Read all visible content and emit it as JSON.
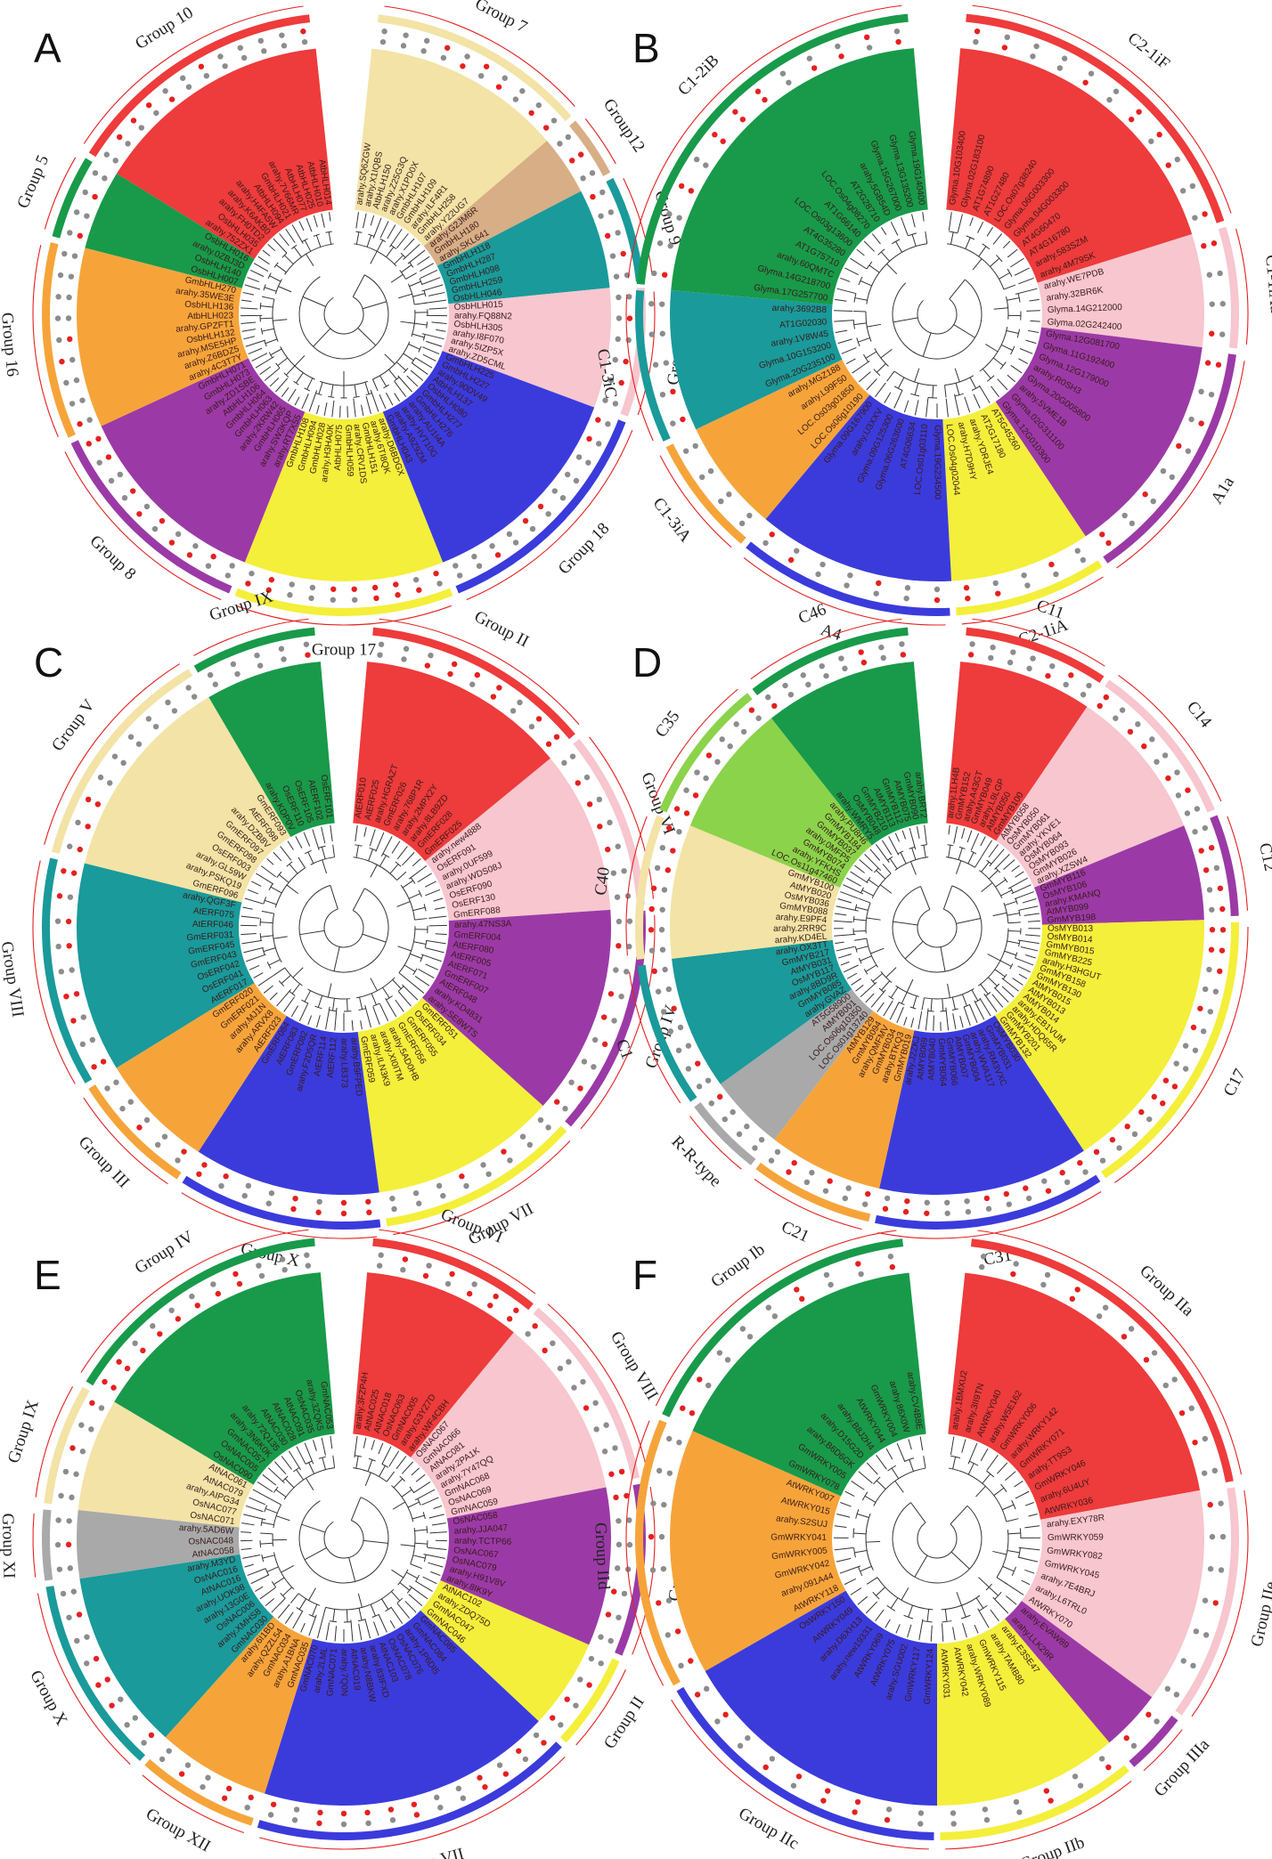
{
  "colors": {
    "red": "#ee3b3b",
    "pink": "#f7c6cf",
    "purple": "#9b3aa6",
    "yellow": "#f4ef3a",
    "blue": "#3b3bdc",
    "orange": "#f6a43a",
    "green": "#189a4a",
    "teal": "#1a9a9a",
    "beige": "#f3e3a6",
    "tan": "#d7ae86",
    "gray": "#a9a9a9",
    "lime": "#8bd34a",
    "dot_gray": "#8c8c8c",
    "dot_red": "#e52020"
  },
  "panels": [
    {
      "id": "A",
      "letter": "A",
      "gap": 12,
      "groups": [
        {
          "label": "Group 7",
          "color": "beige",
          "leaves": [
            "arahy.SQ6ZGW",
            "arahy.X1IQBS",
            "AtbHLH150",
            "arahy.Z25G3Q",
            "arahy.X1PD0X",
            "GmbHLH107",
            "GmbHLH109",
            "arahy.ILF4R1",
            "GmbHLH258",
            "arahy.Y22UG7"
          ]
        },
        {
          "label": "Group12",
          "color": "tan",
          "leaves": [
            "arahy.G2JM6R",
            "GmbHLH180",
            "arahy.SKL641"
          ]
        },
        {
          "label": "Group 9",
          "color": "teal",
          "leaves": [
            "GmbHLH118",
            "GmbHLH287",
            "GmbHLH098",
            "GmbHLH259",
            "OsbHLH046"
          ]
        },
        {
          "label": "Group 6",
          "color": "pink",
          "leaves": [
            "OsbHLH015",
            "arahy.FQ88N2",
            "OsbHLH305",
            "arahy.I8F070",
            "arahy.5IZP5X",
            "arahy.ZD5CML"
          ]
        },
        {
          "label": "Group 18",
          "color": "blue",
          "leaves": [
            "GmbHLH225",
            "GmbHLH227",
            "arahy.90DV49",
            "AtbHLH137",
            "OsbHLH080",
            "GmbHLH277",
            "GmbHLH276",
            "arahy.AU1I4A",
            "arahy.HVT10G",
            "arahy.A9Z9ZM",
            "GmbHLH043"
          ]
        },
        {
          "label": "Group 17",
          "color": "yellow",
          "leaves": [
            "arahy.D6BDGX",
            "arahy.6TI8QK",
            "GmbHLH151",
            "arahy.CRV1DS",
            "GmbHLH059",
            "AtbHLH075",
            "arahy.H3HA0K",
            "GmbHLH028",
            "GmbHLH094",
            "GmbHLH108"
          ]
        },
        {
          "label": "Group 8",
          "color": "purple",
          "leaves": [
            "arahy.RT7X55",
            "arahy.SW3KQP",
            "GmbHLH065",
            "arahy.2KRW42",
            "GmbHLH063",
            "GmbHLH064",
            "AtbHLH106",
            "arahy.ZD1SBE",
            "GmbHLH073",
            "GmbHLH071"
          ]
        },
        {
          "label": "Group 16",
          "color": "orange",
          "leaves": [
            "arahy.4C3T7Y",
            "arahy.Z6BDZ5",
            "arahy.MSE5HP",
            "OsbHLH132",
            "arahy.GPZFT1",
            "AtbHLH023",
            "OsbHLH136",
            "arahy.35WE3E",
            "GmbHLH270"
          ]
        },
        {
          "label": "Group 5",
          "color": "green",
          "leaves": [
            "OsbHLH007",
            "OsbHLH140",
            "arahy.0ZBJ3D",
            "OsbHLH016"
          ]
        },
        {
          "label": "Group 10",
          "color": "red",
          "leaves": [
            "arahy.752ZX1",
            "OsbHLH035",
            "arahy.FH0TD2",
            "arahy.K6AKB0",
            "arahy.H4FA5W",
            "AtbHLH094",
            "GmbHLH021",
            "arahy.7V66MR",
            "AtbHLH077",
            "AtbHLH025",
            "AtbHLH010",
            "AtbHLH014"
          ]
        }
      ]
    },
    {
      "id": "B",
      "letter": "B",
      "gap": 10,
      "groups": [
        {
          "label": "C2-1iF",
          "color": "red",
          "leaves": [
            "Glyma.10G103400",
            "Glyma.02G183100",
            "AT1G74890",
            "AT1G27480",
            "LOC.Os07g38240",
            "Glyma.06G003300",
            "Glyma.04G003300",
            "AT4G60470",
            "AT4G16780",
            "arahy.583SZM",
            "arahy.4M79SK"
          ]
        },
        {
          "label": "C1-1iAa",
          "color": "pink",
          "leaves": [
            "arahy.WE7PDB",
            "arahy.32BR6K",
            "Glyma.14G212000",
            "Glyma.02G242400"
          ]
        },
        {
          "label": "A1a",
          "color": "purple",
          "leaves": [
            "Glyma.12G081700",
            "Glyma.11G192400",
            "Glyma.12G179000",
            "arahy.R0SH3",
            "Glyma.20G005800",
            "arahy.5VME1B",
            "Glyma.02G311100",
            "Glyma.12G010300"
          ]
        },
        {
          "label": "C2-1iA",
          "color": "yellow",
          "leaves": [
            "AT5G45260",
            "AT2G17180",
            "arahy.YDRJE4",
            "arahy.H7D9HY",
            "LOC.Os04g02044"
          ]
        },
        {
          "label": "A4",
          "color": "blue",
          "leaves": [
            "Glyma.19G234500",
            "LOC.Os01g03110",
            "AT4G06634",
            "Glyma.06G263600",
            "Glyma.09G125300",
            "arahy.U3XXV",
            "Glyma.09G167900"
          ]
        },
        {
          "label": "C1-3iA",
          "color": "orange",
          "leaves": [
            "LOC.Os06g10190",
            "LOC.Os03g01850",
            "arahy.L99F50",
            "arahy.MGZ188"
          ]
        },
        {
          "label": "C1-3iC",
          "color": "teal",
          "leaves": [
            "Glyma.20G235100",
            "Glyma.10G153200",
            "arahy.1V8W45",
            "AT1G02030",
            "arahy.3692B8"
          ]
        },
        {
          "label": "C1-2iB",
          "color": "green",
          "leaves": [
            "Glyma.17G257700",
            "Glyma.14G218700",
            "arahy.60QMTC",
            "AT1G75710",
            "AT4G35280",
            "LOC.Os03g13600",
            "AT1G66140",
            "LOC.Os04g08270",
            "AT2G28710",
            "arahy.5GB54D",
            "Glyma.15G267000",
            "Glyma.13G135200",
            "Glyma.19G140400"
          ]
        }
      ]
    },
    {
      "id": "C",
      "letter": "C",
      "gap": 10,
      "groups": [
        {
          "label": "Group II",
          "color": "red",
          "leaves": [
            "AtERF010",
            "AtERF025",
            "arahy.HGRAZT",
            "GmERF026",
            "arahy.768P1R",
            "arahy.2MPX2Y",
            "arahy.8LB9ZD",
            "GmERF028",
            "GmERF025"
          ]
        },
        {
          "label": "Group VI",
          "color": "pink",
          "leaves": [
            "arahy.new4888",
            "OsERF091",
            "arahy.0UF599",
            "arahy.WDS08J",
            "OsERF090",
            "OsERF130",
            "GmERF088"
          ]
        },
        {
          "label": "Group IV",
          "color": "purple",
          "leaves": [
            "arahy.47NS3A",
            "GmERF004",
            "AtERF080",
            "AtERF005",
            "AtERF071",
            "GmERF007",
            "AtERF048",
            "arahy.KD4831",
            "arahy.SE8WTS"
          ]
        },
        {
          "label": "Group VII",
          "color": "yellow",
          "leaves": [
            "GmERF051",
            "OsERF034",
            "GmERF055",
            "GmERF056",
            "arahy.5AD0HB",
            "arahy.XI0ITM",
            "arahy.ILN3K9",
            "GmERF059"
          ]
        },
        {
          "label": "Group X",
          "color": "blue",
          "leaves": [
            "arahy.B9FPED",
            "arahy.LB373",
            "AtERF112",
            "AtERF114",
            "arahy.F2D5QR",
            "GmERF082",
            "AtERF083",
            "GmERF084"
          ]
        },
        {
          "label": "Group III",
          "color": "orange",
          "leaves": [
            "AtERF023",
            "arahy.ARVX8",
            "arahy.MJ1N",
            "GmERF021",
            "GmERF020"
          ]
        },
        {
          "label": "Group VIII",
          "color": "teal",
          "leaves": [
            "AtERF017",
            "OsERF041",
            "OsERF042",
            "GmERF043",
            "GmERF045",
            "GmERF031",
            "AtERF046",
            "AtERF075",
            "arahy.QGF3F"
          ]
        },
        {
          "label": "Group V",
          "color": "beige",
          "leaves": [
            "GmERF096",
            "arahy.PSKQ19",
            "arahy.GL59W",
            "OsERF003",
            "GmERF098",
            "GmERF097",
            "arahy.DZB8V",
            "AtERF098",
            "GmERF093"
          ]
        },
        {
          "label": "Group IX",
          "color": "green",
          "leaves": [
            "arahy.KDP0V",
            "OsERF110",
            "OsERF105",
            "AtERF102",
            "OsERF101"
          ]
        }
      ]
    },
    {
      "id": "D",
      "letter": "D",
      "gap": 10,
      "groups": [
        {
          "label": "C11",
          "color": "red",
          "leaves": [
            "arahy.1LH4B",
            "GmMYB152",
            "arahy.A43GT",
            "GmMYB049",
            "arahy.L9LGP",
            "AtMYB050",
            "GmMYB100"
          ]
        },
        {
          "label": "C14",
          "color": "pink",
          "leaves": [
            "AtMYB058",
            "OsMYB050",
            "GmMYB061",
            "arahy.YKVE1",
            "OsMYB064",
            "OsMYB093",
            "GmMYB026",
            "arahy.XZSW4"
          ]
        },
        {
          "label": "C12",
          "color": "purple",
          "leaves": [
            "GmMYB116",
            "OsMYB106",
            "arahy.KMANQ",
            "AtMYB099",
            "GmMYB198"
          ]
        },
        {
          "label": "C17",
          "color": "yellow",
          "leaves": [
            "OsMYB013",
            "OsMYB014",
            "GmMYB015",
            "GmMYB225",
            "arahy.H3HGUT",
            "GmMYB158",
            "GmMYB130",
            "AtMYB015",
            "AtMYB013",
            "AtMYB014",
            "arahy.EB1VUM",
            "arahy.HDQ65R",
            "GmMYB201",
            "GmMYB132"
          ]
        },
        {
          "label": "C31",
          "color": "blue",
          "leaves": [
            "OsMYB030",
            "GmMYB031",
            "arahy.RM3VXC",
            "arahy.WVA117",
            "GmMYB004",
            "AtMYB007",
            "GmMYB066",
            "GmMYB064",
            "AtMYB040",
            "AtMYB069",
            "arahy.J2ZKJ"
          ]
        },
        {
          "label": "C21",
          "color": "orange",
          "leaves": [
            "GmMYB019",
            "arahy.BTKQ3",
            "GmMYB034",
            "arahy.QMFMV",
            "GmMYB094",
            "AtMYB129"
          ]
        },
        {
          "label": "R-R-type",
          "color": "gray",
          "leaves": [
            "LOC.Os01g13740",
            "LOC.Os06g10350",
            "AtMYB001",
            "AT5G58900"
          ]
        },
        {
          "label": "C1",
          "color": "teal",
          "leaves": [
            "arahy.GVAZ",
            "GmMYB085",
            "arahy.8BD9R",
            "OsMYB117",
            "AtMYB031",
            "GmMYB217",
            "arahy.OX3TT"
          ]
        },
        {
          "label": "C40",
          "color": "beige",
          "leaves": [
            "arahy.KD4EL",
            "arahy.2RR9C",
            "arahy.E9PF4",
            "GmMYB088",
            "OsMYB036",
            "AtMYB020",
            "GmMYB100"
          ]
        },
        {
          "label": "C35",
          "color": "lime",
          "leaves": [
            "LOC.Os11g47460",
            "arahy.YFKHS",
            "GmMYB074",
            "arahy.0MFP5",
            "GmMYB037",
            "GmMYB184",
            "arahy.PU8H6"
          ]
        },
        {
          "label": "C46",
          "color": "green",
          "leaves": [
            "arahy.WMRY5",
            "OsMYB048",
            "GmMYB210",
            "AtMYB113",
            "GmMYB112",
            "AtMYB075",
            "GmMYB090",
            "arahy.BRT2"
          ]
        }
      ]
    },
    {
      "id": "E",
      "letter": "E",
      "gap": 10,
      "groups": [
        {
          "label": "Group VI",
          "color": "red",
          "leaves": [
            "arahy.3FZP4H",
            "AtNAC025",
            "AtNAC018",
            "OsNAC063",
            "GmNAC005",
            "arahy.G3YZ7D",
            "arahy.WF4CBH"
          ]
        },
        {
          "label": "Group VIII",
          "color": "pink",
          "leaves": [
            "OsNAC067",
            "GmNAC066",
            "AtNAC081",
            "arahy.2PA1K",
            "arahy.7Y47QQ",
            "GmNAC068",
            "OsNAC069",
            "GmNAC059"
          ]
        },
        {
          "label": "Group I",
          "color": "purple",
          "leaves": [
            "OsNAC058",
            "arahy.JJA047",
            "arahy.TCTP66",
            "OsNAC067",
            "OsNAC079",
            "arahy.H91V8V",
            "arahy.8IK9Y"
          ]
        },
        {
          "label": "Group II",
          "color": "yellow",
          "leaves": [
            "AtNAC102",
            "arahy.ZDQ75D",
            "GmNAC047",
            "GmNAC046"
          ]
        },
        {
          "label": "Group VII",
          "color": "blue",
          "leaves": [
            "GmNAC085",
            "GmNAC084",
            "arahy.1P6DI5",
            "OsNAC076",
            "OsNAC078",
            "AtNAC103",
            "arahy.83IFXD",
            "arahy.N8BKW",
            "AtNAC019",
            "arahy.7Q0N",
            "GmNAC071",
            "arahy.2LML",
            "GmNAC070"
          ]
        },
        {
          "label": "Group XII",
          "color": "orange",
          "leaves": [
            "GmNAC035",
            "arahy.A1BNA",
            "GmNAC034",
            "arahy.QZZL54",
            "arahy.6I1BD"
          ]
        },
        {
          "label": "Group X",
          "color": "teal",
          "leaves": [
            "GmNAC030",
            "arahy.XMHS8",
            "OsNAC006",
            "arahy.13G0E",
            "arahy.UOK98",
            "AtNAC016",
            "OsNAC016",
            "arahy.M3YD"
          ]
        },
        {
          "label": "Group XI",
          "color": "gray",
          "leaves": [
            "AtNAC058",
            "OsNAC048",
            "arahy.5AD6W"
          ]
        },
        {
          "label": "Group IX",
          "color": "beige",
          "leaves": [
            "OsNAC071",
            "OsNAC077",
            "arahy.AIPG34",
            "AtNAC079",
            "AtNAC061"
          ]
        },
        {
          "label": "Group IV",
          "color": "green",
          "leaves": [
            "OsNAC090",
            "OsNAC005",
            "GmNAC057",
            "arahy.3N6K0K",
            "arahy.72Q135",
            "AtNAC030",
            "AtNAC028",
            "AtNAC091",
            "OsNAC035",
            "arahy.3ZQK5",
            "GmNAC053"
          ]
        }
      ]
    },
    {
      "id": "F",
      "letter": "F",
      "gap": 12,
      "groups": [
        {
          "label": "Group IIa",
          "color": "red",
          "leaves": [
            "arahy.1BMXU2",
            "arahy.3II9TN",
            "AtWRKY040",
            "arahy.W5E162",
            "GmWRKY006",
            "arahy.WRKY142",
            "GmWRKY071",
            "arahy.TT9S3",
            "GmWRKY046",
            "arahy.6U4UY",
            "AtWRKY036"
          ]
        },
        {
          "label": "Group IIe",
          "color": "pink",
          "leaves": [
            "arahy.EXY78R",
            "GmWRKY059",
            "GmWRKY082",
            "GmWRKY045",
            "arahy.7E4BRJ",
            "arahy.L6TRL0",
            "AtWRKY070"
          ]
        },
        {
          "label": "Group IIIa",
          "color": "purple",
          "leaves": [
            "arahy.EVAW89",
            "arahy.LLK29R"
          ]
        },
        {
          "label": "Group IIb",
          "color": "yellow",
          "leaves": [
            "arahy.E3SE47",
            "arahy.TAMB80",
            "GmWRKY115",
            "arahy.WRKY089",
            "AtWRKY042",
            "AtWRKY031"
          ]
        },
        {
          "label": "Group IIc",
          "color": "blue",
          "leaves": [
            "GmWRKY124",
            "GmWRKY117",
            "arahy.SGU002",
            "AtWRKY075",
            "AtWRKY069",
            "arahy.new19331",
            "arahy.D6XH13",
            "AtWRKY049",
            "OsWRKY150"
          ]
        },
        {
          "label": "Group IId",
          "color": "orange",
          "leaves": [
            "AtWRKY118",
            "arahy.091A44",
            "GmWRKY042",
            "GmWRKY005",
            "GmWRKY041",
            "arahy.S2SUJ",
            "AtWRKY015",
            "AtWRKY007"
          ]
        },
        {
          "label": "Group Ib",
          "color": "green",
          "leaves": [
            "GmWRKY078",
            "GmWRKY005",
            "arahy.B6D6GK",
            "arahy.D15G2D",
            "arahy.B8J2H4",
            "AtWRKY044",
            "GmWRKY004",
            "arahy.86X0W",
            "arahy.CV4B8E"
          ]
        }
      ]
    }
  ]
}
